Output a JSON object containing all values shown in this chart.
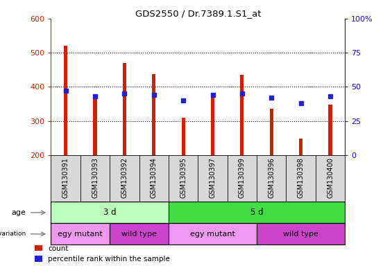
{
  "title": "GDS2550 / Dr.7389.1.S1_at",
  "samples": [
    "GSM130391",
    "GSM130393",
    "GSM130392",
    "GSM130394",
    "GSM130395",
    "GSM130397",
    "GSM130399",
    "GSM130396",
    "GSM130398",
    "GSM130400"
  ],
  "count_values": [
    520,
    375,
    470,
    438,
    310,
    375,
    435,
    335,
    248,
    348
  ],
  "percentile_values": [
    47,
    43,
    45,
    44,
    40,
    44,
    45,
    42,
    38,
    43
  ],
  "ylim_left": [
    200,
    600
  ],
  "ylim_right": [
    0,
    100
  ],
  "yticks_left": [
    200,
    300,
    400,
    500,
    600
  ],
  "yticks_right": [
    0,
    25,
    50,
    75,
    100
  ],
  "bar_color": "#cc2200",
  "dot_color": "#2222cc",
  "age_groups": [
    {
      "label": "3 d",
      "start": 0,
      "end": 4,
      "color": "#bbffbb"
    },
    {
      "label": "5 d",
      "start": 4,
      "end": 10,
      "color": "#44dd44"
    }
  ],
  "genotype_groups": [
    {
      "label": "egy mutant",
      "start": 0,
      "end": 2,
      "color": "#ee99ee"
    },
    {
      "label": "wild type",
      "start": 2,
      "end": 4,
      "color": "#cc44cc"
    },
    {
      "label": "egy mutant",
      "start": 4,
      "end": 7,
      "color": "#ee99ee"
    },
    {
      "label": "wild type",
      "start": 7,
      "end": 10,
      "color": "#cc44cc"
    }
  ],
  "legend_items": [
    {
      "label": "count",
      "color": "#cc2200"
    },
    {
      "label": "percentile rank within the sample",
      "color": "#2222cc"
    }
  ],
  "left_axis_color": "#cc2200",
  "right_axis_color": "#2200cc",
  "bar_width": 0.12,
  "marker_size": 5
}
